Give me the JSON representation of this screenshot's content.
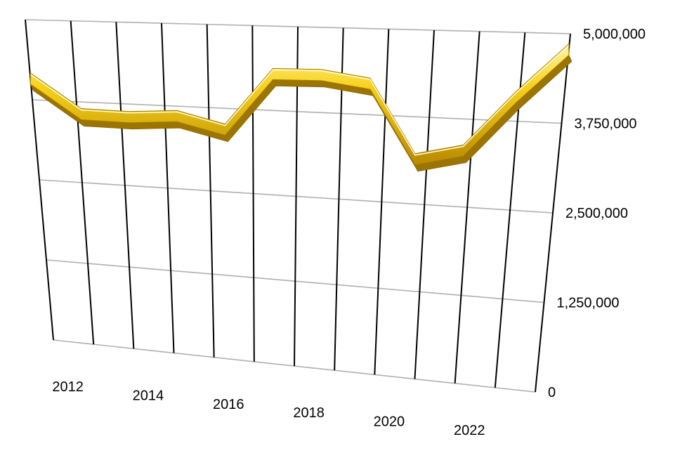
{
  "chart_data": {
    "type": "line",
    "title": "",
    "xlabel": "",
    "ylabel": "",
    "x": [
      2012,
      2013,
      2014,
      2015,
      2016,
      2017,
      2018,
      2019,
      2020,
      2021,
      2022,
      2023
    ],
    "x_tick_labels": [
      "2012",
      "2014",
      "2016",
      "2018",
      "2020",
      "2022"
    ],
    "y_tick_labels": [
      "0",
      "1,250,000",
      "2,500,000",
      "3,750,000",
      "5,000,000"
    ],
    "ylim": [
      0,
      5000000
    ],
    "grid": true,
    "series": [
      {
        "values": [
          4080000,
          3560000,
          3550000,
          3600000,
          3430000,
          4290000,
          4300000,
          4200000,
          3140000,
          3300000,
          4080000,
          4780000
        ],
        "color": "#f2c21a"
      }
    ]
  }
}
